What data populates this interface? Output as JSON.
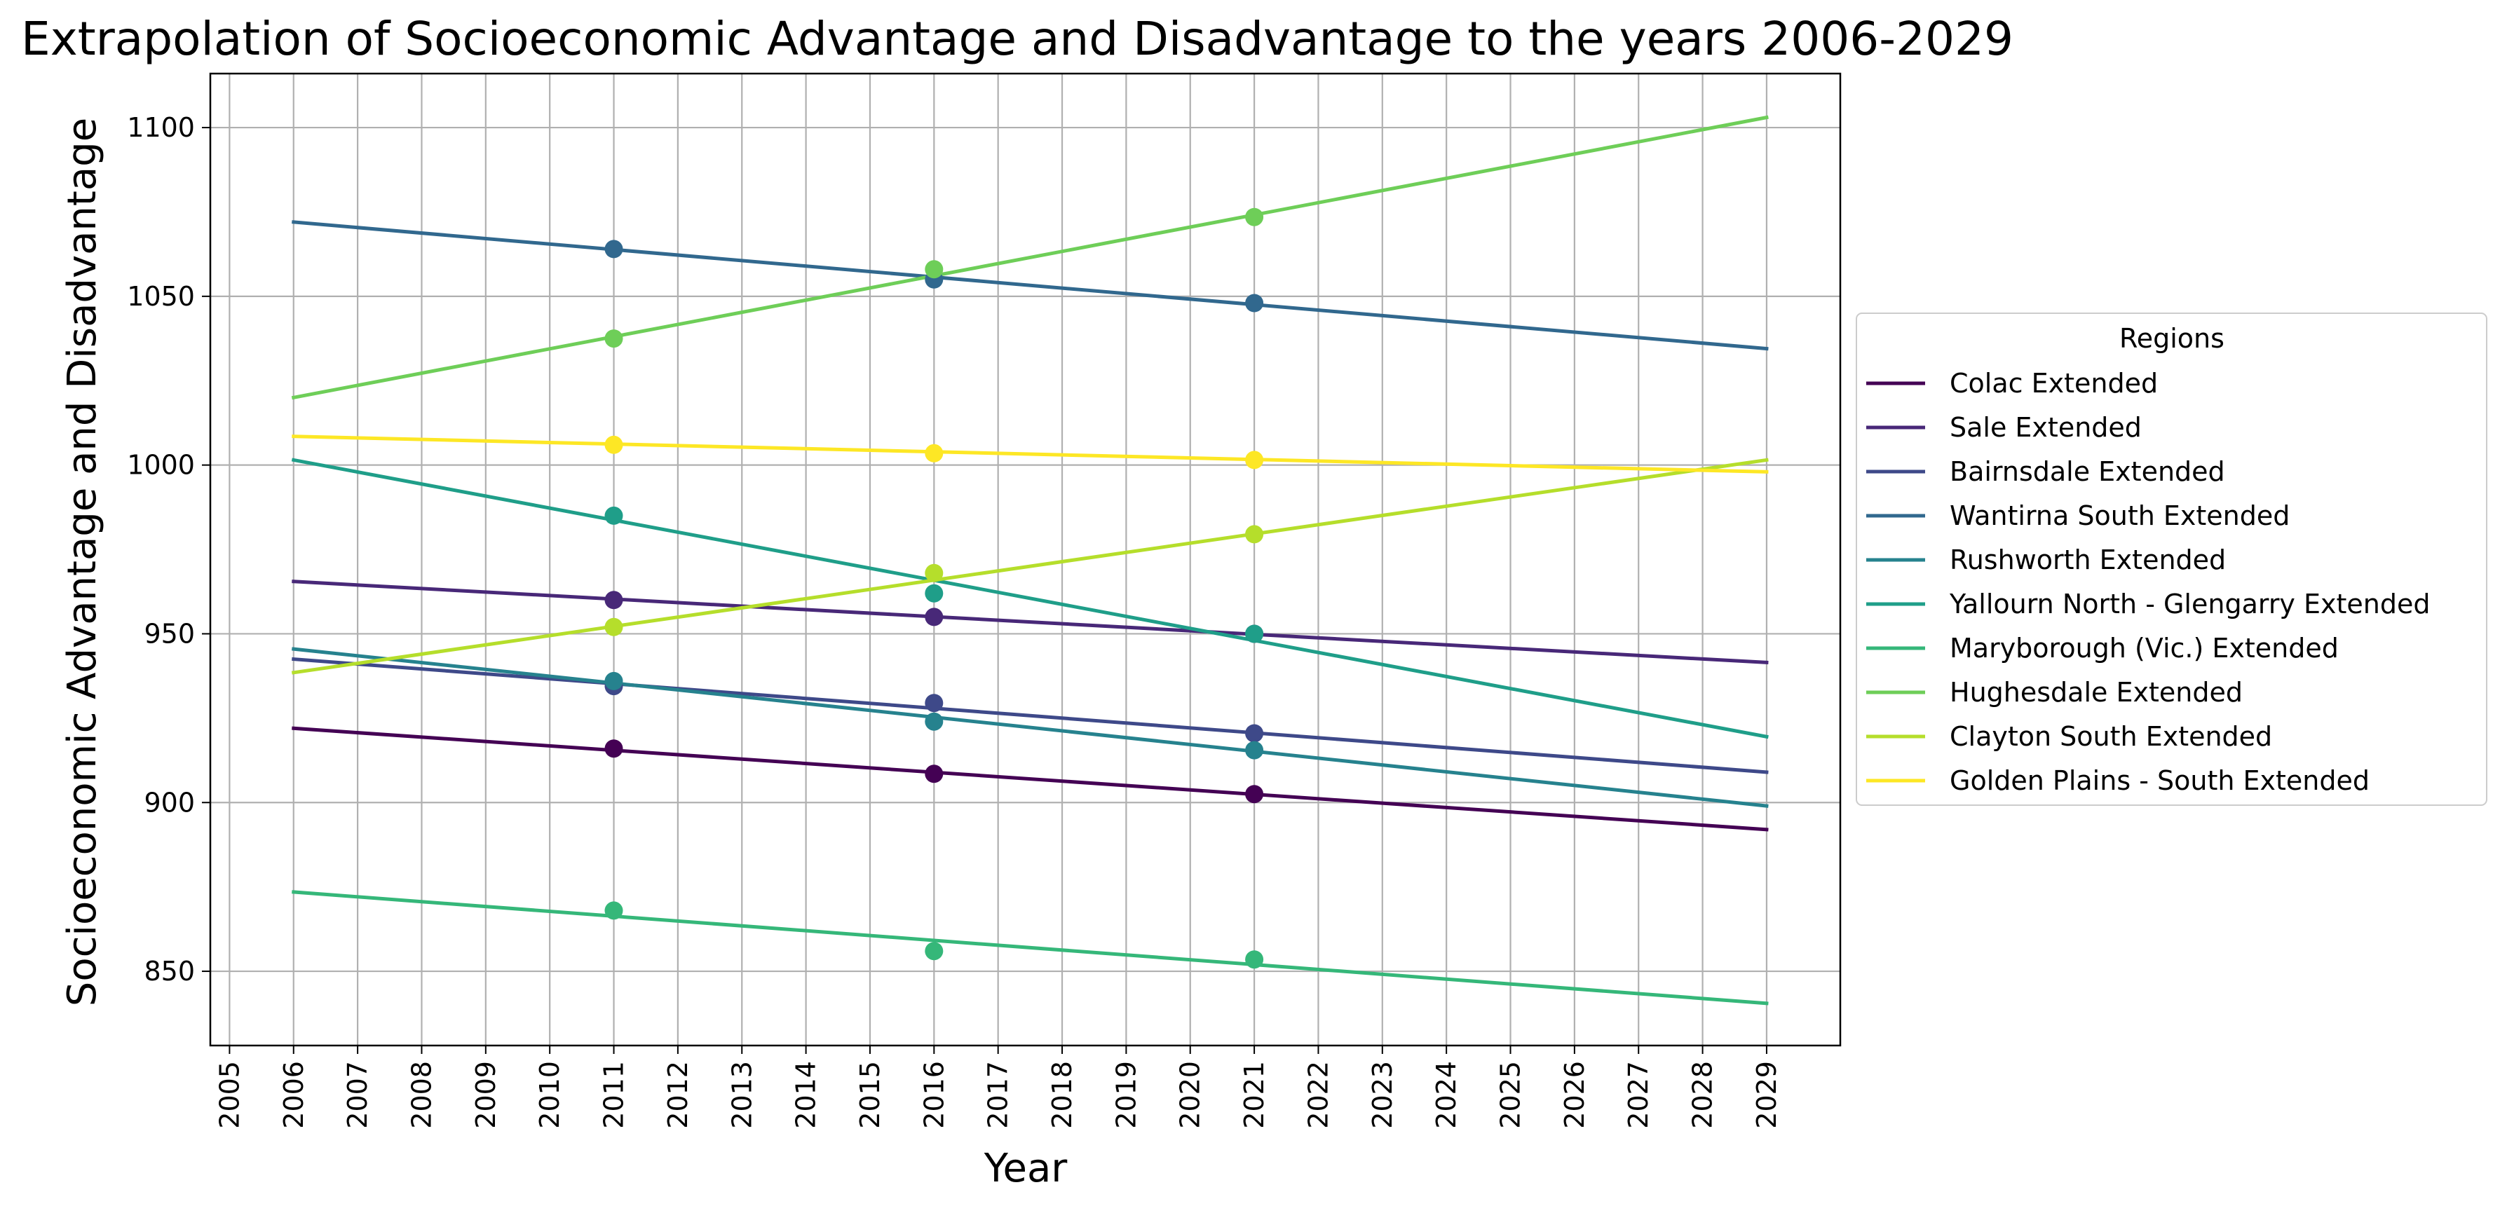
{
  "chart_data": {
    "type": "line",
    "title": "Extrapolation of Socioeconomic Advantage and Disadvantage to the years 2006-2029",
    "xlabel": "Year",
    "ylabel": "Socioeconomic Advantage and Disadvantage",
    "xlim": [
      2004.7,
      2030.15
    ],
    "ylim": [
      828,
      1116
    ],
    "x_ticks": [
      2005,
      2006,
      2007,
      2008,
      2009,
      2010,
      2011,
      2012,
      2013,
      2014,
      2015,
      2016,
      2017,
      2018,
      2019,
      2020,
      2021,
      2022,
      2023,
      2024,
      2025,
      2026,
      2027,
      2028,
      2029
    ],
    "y_ticks": [
      850,
      900,
      950,
      1000,
      1050,
      1100
    ],
    "grid": true,
    "legend": {
      "title": "Regions",
      "placement": "right-outside"
    },
    "series": [
      {
        "name": "Colac Extended",
        "color": "#440154",
        "line": [
          [
            2006,
            922
          ],
          [
            2029,
            892
          ]
        ],
        "points": [
          [
            2011,
            916
          ],
          [
            2016,
            908.5
          ],
          [
            2021,
            902.5
          ]
        ]
      },
      {
        "name": "Sale Extended",
        "color": "#482878",
        "line": [
          [
            2006,
            965.5
          ],
          [
            2029,
            941.5
          ]
        ],
        "points": [
          [
            2011,
            960
          ],
          [
            2016,
            955
          ],
          [
            2021,
            950
          ]
        ]
      },
      {
        "name": "Bairnsdale Extended",
        "color": "#3e4989",
        "line": [
          [
            2006,
            942.5
          ],
          [
            2029,
            909
          ]
        ],
        "points": [
          [
            2011,
            934.5
          ],
          [
            2016,
            929.5
          ],
          [
            2021,
            920.5
          ]
        ]
      },
      {
        "name": "Wantirna South Extended",
        "color": "#31688e",
        "line": [
          [
            2006,
            1072
          ],
          [
            2029,
            1034.5
          ]
        ],
        "points": [
          [
            2011,
            1064
          ],
          [
            2016,
            1055
          ],
          [
            2021,
            1048
          ]
        ]
      },
      {
        "name": "Rushworth Extended",
        "color": "#26828e",
        "line": [
          [
            2006,
            945.5
          ],
          [
            2029,
            899
          ]
        ],
        "points": [
          [
            2011,
            936
          ],
          [
            2016,
            924
          ],
          [
            2021,
            915.5
          ]
        ]
      },
      {
        "name": "Yallourn North - Glengarry Extended",
        "color": "#1f9e89",
        "line": [
          [
            2006,
            1001.5
          ],
          [
            2029,
            919.5
          ]
        ],
        "points": [
          [
            2011,
            985
          ],
          [
            2016,
            962
          ],
          [
            2021,
            950
          ]
        ]
      },
      {
        "name": "Maryborough (Vic.) Extended",
        "color": "#35b779",
        "line": [
          [
            2006,
            873.5
          ],
          [
            2029,
            840.5
          ]
        ],
        "points": [
          [
            2011,
            868
          ],
          [
            2016,
            856
          ],
          [
            2021,
            853.5
          ]
        ]
      },
      {
        "name": "Hughesdale Extended",
        "color": "#6ece58",
        "line": [
          [
            2006,
            1020
          ],
          [
            2029,
            1103
          ]
        ],
        "points": [
          [
            2011,
            1037.5
          ],
          [
            2016,
            1058
          ],
          [
            2021,
            1073.5
          ]
        ]
      },
      {
        "name": "Clayton South Extended",
        "color": "#b5de2b",
        "line": [
          [
            2006,
            938.5
          ],
          [
            2029,
            1001.5
          ]
        ],
        "points": [
          [
            2011,
            952
          ],
          [
            2016,
            968
          ],
          [
            2021,
            979.5
          ]
        ]
      },
      {
        "name": "Golden Plains - South Extended",
        "color": "#fde725",
        "line": [
          [
            2006,
            1008.5
          ],
          [
            2029,
            998
          ]
        ],
        "points": [
          [
            2011,
            1006
          ],
          [
            2016,
            1003.5
          ],
          [
            2021,
            1001.5
          ]
        ]
      }
    ]
  }
}
